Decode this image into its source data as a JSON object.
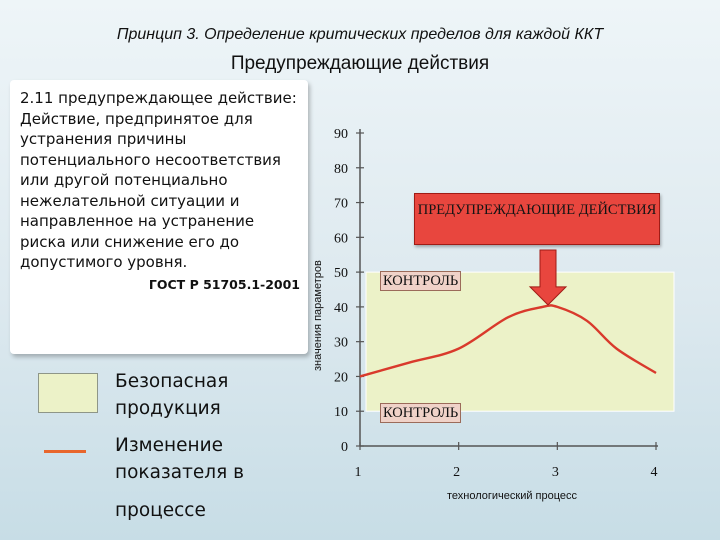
{
  "header": {
    "title": "Принцип 3. Определение критических пределов для каждой ККТ",
    "subtitle": "Предупреждающие действия"
  },
  "definition": {
    "term": "2.11 предупреждающее действие:",
    "text": " Действие, предпринятое для устранения причины потенциального несоответствия или другой потенциально нежелательной ситуации и направленное на устранение риска или снижение его до допустимого уровня.",
    "source": "ГОСТ Р 51705.1-2001"
  },
  "legend": {
    "safe_label": "Безопасная продукция",
    "line_label_1": "Изменение показателя в",
    "line_label_2": "процессе",
    "safe_color": "#ecf2c8",
    "line_color": "#e8662c"
  },
  "annotations": {
    "preventive_actions": "ПРЕДУПРЕЖДАЮЩИЕ ДЕЙСТВИЯ",
    "control_upper": "КОНТРОЛЬ",
    "control_lower": "КОНТРОЛЬ",
    "box_color": "#e8463e"
  },
  "chart_data": {
    "type": "line",
    "ylabel": "значения параметров",
    "xlabel": "технологический процесс",
    "x_ticks": [
      "1",
      "2",
      "3",
      "4"
    ],
    "y_ticks": [
      "0",
      "10",
      "20",
      "30",
      "40",
      "50",
      "60",
      "70",
      "80",
      "90"
    ],
    "xlim": [
      1,
      4
    ],
    "ylim": [
      0,
      90
    ],
    "safe_zone": [
      10,
      50
    ],
    "series": [
      {
        "x": [
          1,
          1.5,
          2,
          2.5,
          2.85,
          3,
          3.3,
          3.6,
          4
        ],
        "y": [
          20,
          24,
          28,
          37,
          40,
          40,
          36,
          28,
          21
        ]
      }
    ],
    "grid": false,
    "legend": "left"
  }
}
